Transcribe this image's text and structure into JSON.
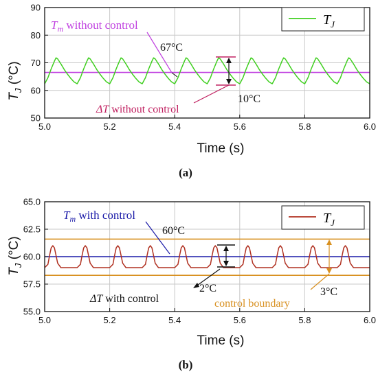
{
  "chart_data": [
    {
      "panel": "(a)",
      "type": "line",
      "xlabel": "Time (s)",
      "ylabel": "T_J (°C)",
      "xlim": [
        5.0,
        6.0
      ],
      "ylim": [
        50,
        90
      ],
      "xticks": [
        "5.0",
        "5.2",
        "5.4",
        "5.6",
        "5.8",
        "6.0"
      ],
      "yticks": [
        "50",
        "60",
        "70",
        "80",
        "90"
      ],
      "grid": true,
      "legend_position": "top-right",
      "series": [
        {
          "name": "T_J",
          "color": "#3fcf1f",
          "period": 0.1,
          "phase_peak": 0.035,
          "x": [
            5.0,
            5.01,
            5.02,
            5.03,
            5.035,
            5.04,
            5.05,
            5.06,
            5.07,
            5.08,
            5.09,
            5.1
          ],
          "values": [
            62.4,
            64.6,
            67.8,
            70.6,
            71.8,
            71.4,
            69.6,
            67.6,
            65.9,
            64.4,
            63.1,
            62.4
          ]
        }
      ],
      "reference_lines": [
        {
          "name": "Tm without control",
          "y": 66.5,
          "color": "#c040e0"
        }
      ],
      "annotations": {
        "tm_label_prefix": "T",
        "tm_label_sub": "m",
        "tm_label_suffix": " without control",
        "tm_value": "67°C",
        "dt_label_prefix": "ΔT",
        "dt_label_suffix": " without control",
        "dt_value": "10°C",
        "dt_range": [
          62,
          72
        ]
      }
    },
    {
      "panel": "(b)",
      "type": "line",
      "xlabel": "Time (s)",
      "ylabel": "T_J (°C)",
      "xlim": [
        5.0,
        6.0
      ],
      "ylim": [
        55.0,
        65.0
      ],
      "xticks": [
        "5.0",
        "5.2",
        "5.4",
        "5.6",
        "5.8",
        "6.0"
      ],
      "yticks": [
        "55.0",
        "57.5",
        "60.0",
        "62.5",
        "65.0"
      ],
      "grid": true,
      "legend_position": "top-right",
      "series": [
        {
          "name": "T_J",
          "color": "#b03020",
          "period": 0.1,
          "phase_peak": 0.025,
          "x": [
            5.0,
            5.01,
            5.015,
            5.02,
            5.025,
            5.03,
            5.035,
            5.04,
            5.05,
            5.1
          ],
          "values": [
            59.0,
            59.3,
            60.1,
            60.8,
            61.0,
            60.8,
            60.1,
            59.4,
            59.0,
            59.0
          ]
        }
      ],
      "reference_lines": [
        {
          "name": "Tm with control",
          "y": 60.0,
          "color": "#1a1aa8"
        },
        {
          "name": "control boundary upper",
          "y": 61.6,
          "color": "#d89020"
        },
        {
          "name": "control boundary lower",
          "y": 58.3,
          "color": "#d89020"
        }
      ],
      "annotations": {
        "tm_label_prefix": "T",
        "tm_label_sub": "m",
        "tm_label_suffix": " with control",
        "tm_value": "60°C",
        "dt_label_prefix": "ΔT",
        "dt_label_suffix": " with control",
        "dt_value": "2°C",
        "dt_range": [
          59,
          61
        ],
        "boundary_label": "control boundary",
        "boundary_value": "3°C"
      }
    }
  ],
  "captions": [
    "(a)",
    "(b)"
  ]
}
